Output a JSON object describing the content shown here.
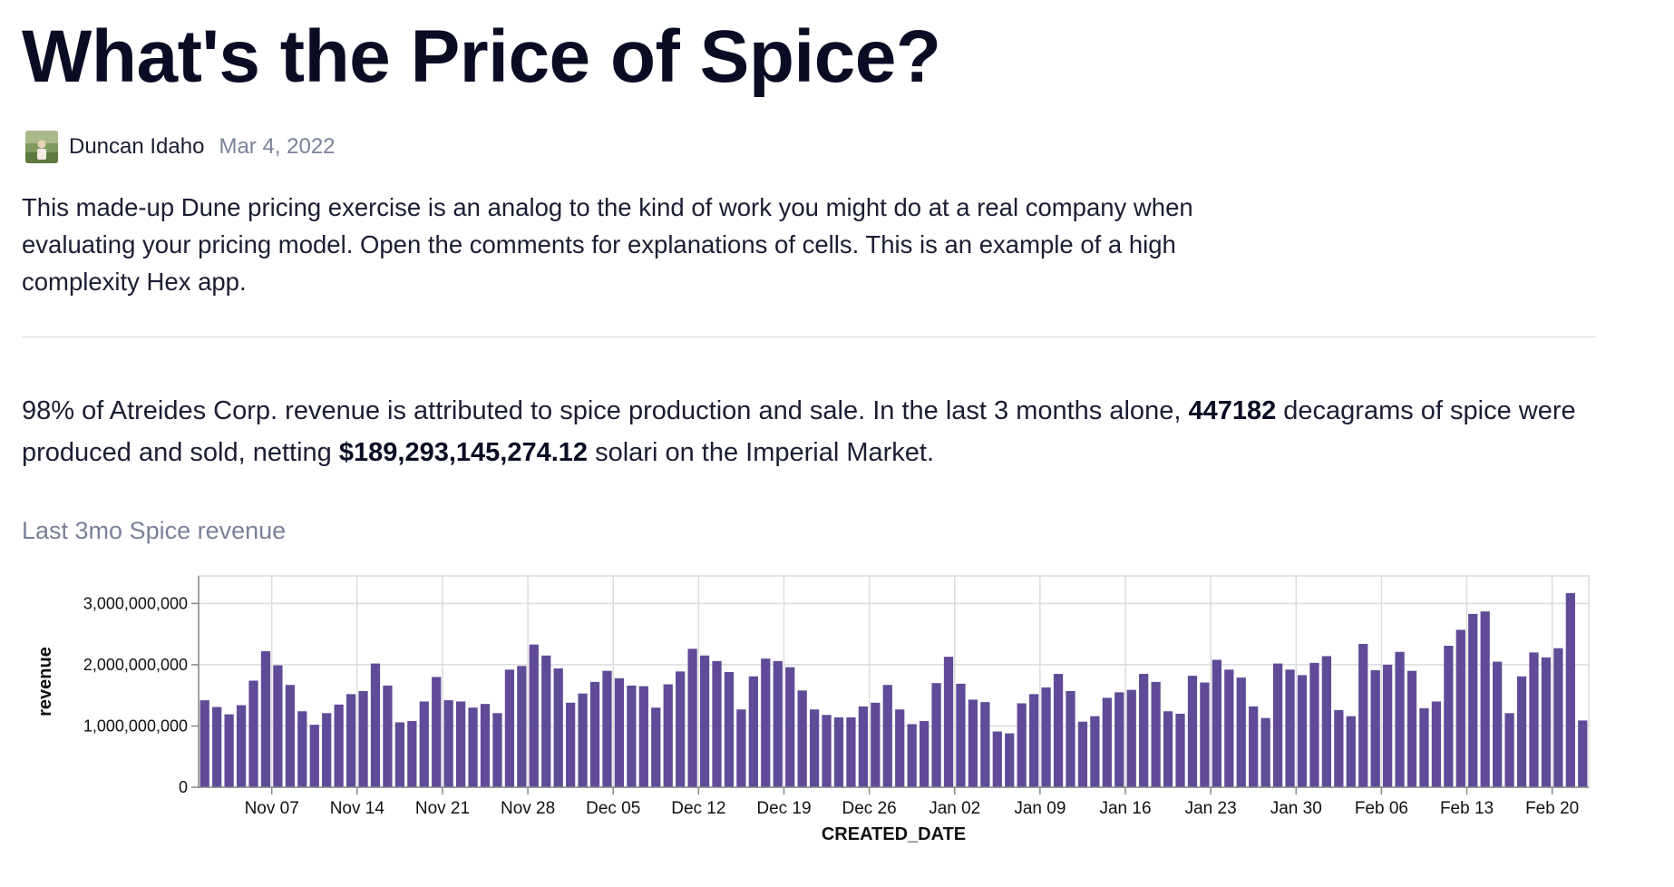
{
  "page": {
    "title": "What's the Price of Spice?",
    "author": "Duncan Idaho",
    "date": "Mar 4, 2022",
    "description": "This made-up Dune pricing exercise is an analog to the kind of work you might do at a real company when evaluating your pricing model. Open the comments for explanations of cells. This is an example of a high complexity Hex app.",
    "summary": {
      "part1": "98% of Atreides Corp. revenue is attributed to spice production and sale. In the last 3 months alone, ",
      "decagrams": "447182",
      "part2": " decagrams of spice were produced and sold, netting ",
      "revenue": "$189,293,145,274.12",
      "part3": " solari on the Imperial Market."
    },
    "chart_title": "Last 3mo Spice revenue"
  },
  "colors": {
    "bar": "#5f4b97",
    "grid": "#dcdcdc",
    "axis": "#888888"
  },
  "chart_data": {
    "type": "bar",
    "xlabel": "CREATED_DATE",
    "ylabel": "revenue",
    "ylim": [
      0,
      3450000000
    ],
    "yticks": [
      {
        "value": 0,
        "label": "0"
      },
      {
        "value": 1000000000,
        "label": "1,000,000,000"
      },
      {
        "value": 2000000000,
        "label": "2,000,000,000"
      },
      {
        "value": 3000000000,
        "label": "3,000,000,000"
      }
    ],
    "x_start": "2021-11-01",
    "xticks": [
      {
        "date": "2021-11-07",
        "label": "Nov 07"
      },
      {
        "date": "2021-11-14",
        "label": "Nov 14"
      },
      {
        "date": "2021-11-21",
        "label": "Nov 21"
      },
      {
        "date": "2021-11-28",
        "label": "Nov 28"
      },
      {
        "date": "2021-12-05",
        "label": "Dec 05"
      },
      {
        "date": "2021-12-12",
        "label": "Dec 12"
      },
      {
        "date": "2021-12-19",
        "label": "Dec 19"
      },
      {
        "date": "2021-12-26",
        "label": "Dec 26"
      },
      {
        "date": "2022-01-02",
        "label": "Jan 02"
      },
      {
        "date": "2022-01-09",
        "label": "Jan 09"
      },
      {
        "date": "2022-01-16",
        "label": "Jan 16"
      },
      {
        "date": "2022-01-23",
        "label": "Jan 23"
      },
      {
        "date": "2022-01-30",
        "label": "Jan 30"
      },
      {
        "date": "2022-02-06",
        "label": "Feb 06"
      },
      {
        "date": "2022-02-13",
        "label": "Feb 13"
      },
      {
        "date": "2022-02-20",
        "label": "Feb 20"
      }
    ],
    "grid": true,
    "values": [
      1420000000,
      1310000000,
      1190000000,
      1340000000,
      1740000000,
      2220000000,
      1990000000,
      1670000000,
      1240000000,
      1020000000,
      1210000000,
      1350000000,
      1520000000,
      1570000000,
      2020000000,
      1660000000,
      1060000000,
      1080000000,
      1400000000,
      1800000000,
      1420000000,
      1400000000,
      1300000000,
      1360000000,
      1210000000,
      1920000000,
      1980000000,
      2330000000,
      2150000000,
      1940000000,
      1380000000,
      1530000000,
      1720000000,
      1900000000,
      1780000000,
      1660000000,
      1650000000,
      1300000000,
      1680000000,
      1890000000,
      2260000000,
      2150000000,
      2060000000,
      1880000000,
      1270000000,
      1810000000,
      2100000000,
      2060000000,
      1960000000,
      1580000000,
      1270000000,
      1180000000,
      1140000000,
      1140000000,
      1320000000,
      1380000000,
      1670000000,
      1270000000,
      1030000000,
      1080000000,
      1700000000,
      2130000000,
      1690000000,
      1430000000,
      1390000000,
      910000000,
      880000000,
      1370000000,
      1520000000,
      1630000000,
      1850000000,
      1570000000,
      1070000000,
      1160000000,
      1460000000,
      1550000000,
      1590000000,
      1850000000,
      1720000000,
      1240000000,
      1200000000,
      1820000000,
      1710000000,
      2080000000,
      1920000000,
      1790000000,
      1320000000,
      1130000000,
      2020000000,
      1920000000,
      1830000000,
      2030000000,
      2140000000,
      1260000000,
      1160000000,
      2340000000,
      1910000000,
      2000000000,
      2210000000,
      1900000000,
      1290000000,
      1400000000,
      2310000000,
      2570000000,
      2830000000,
      2870000000,
      2050000000,
      1210000000,
      1810000000,
      2200000000,
      2120000000,
      2270000000,
      3170000000,
      1090000000
    ]
  }
}
